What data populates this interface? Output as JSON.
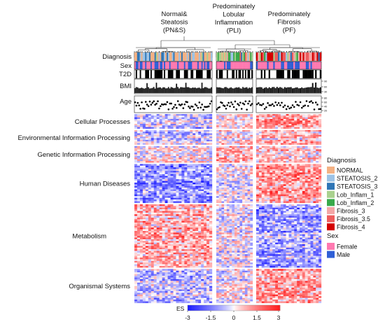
{
  "chart_data": {
    "type": "heatmap",
    "title": "",
    "clusters": [
      {
        "name": "Normal & Steatosis",
        "lines": [
          "Normal&",
          "Steatosis"
        ],
        "abbr": "(PN&S)",
        "n_samples": 58
      },
      {
        "name": "Predominately Lobular Inflammation",
        "lines": [
          "Predominately",
          "Lobular",
          "Inflammation"
        ],
        "abbr": "(PLI)",
        "n_samples": 28
      },
      {
        "name": "Predominately Fibrosis",
        "lines": [
          "Predominately",
          "Fibrosis"
        ],
        "abbr": "(PF)",
        "n_samples": 42
      }
    ],
    "annotation_tracks": [
      "Diagnosis",
      "Sex",
      "T2D",
      "BMI",
      "Age"
    ],
    "bmi_axis_ticks": [
      "90",
      "60",
      "30"
    ],
    "age_axis_ticks": [
      "80",
      "60",
      "40",
      "20"
    ],
    "row_groups": [
      {
        "label": "Cellular Processes",
        "n_rows": 30
      },
      {
        "label": "Environmental Information Processing",
        "n_rows": 30
      },
      {
        "label": "Genetic Information Processing",
        "n_rows": 34
      },
      {
        "label": "Human Diseases",
        "n_rows": 80
      },
      {
        "label": "Metabolism",
        "n_rows": 130
      },
      {
        "label": "Organismal Systems",
        "n_rows": 70
      }
    ],
    "colorbar": {
      "label": "ES",
      "ticks": [
        "-3",
        "-1.5",
        "0",
        "1.5",
        "3"
      ],
      "range": [
        -3,
        3
      ],
      "low_color": "#1a1aff",
      "mid_color": "#ffffff",
      "high_color": "#ff1a1a"
    },
    "legend": {
      "diagnosis_title": "Diagnosis",
      "diagnosis": [
        {
          "label": "NORMAL",
          "color": "#f4b183"
        },
        {
          "label": "STEATOSIS_2",
          "color": "#9dc3e6"
        },
        {
          "label": "STEATOSIS_3",
          "color": "#2e75b6"
        },
        {
          "label": "Lob_Inflam_1",
          "color": "#a9d18e"
        },
        {
          "label": "Lob_Inflam_2",
          "color": "#38a94a"
        },
        {
          "label": "Fibrosis_3",
          "color": "#f4a6a6"
        },
        {
          "label": "Fibrosis_3.5",
          "color": "#ee5d5d"
        },
        {
          "label": "Fibrosis_4",
          "color": "#d40000"
        }
      ],
      "sex_title": "Sex",
      "sex": [
        {
          "label": "Female",
          "color": "#ff79b0"
        },
        {
          "label": "Male",
          "color": "#2f5fd6"
        }
      ]
    }
  }
}
